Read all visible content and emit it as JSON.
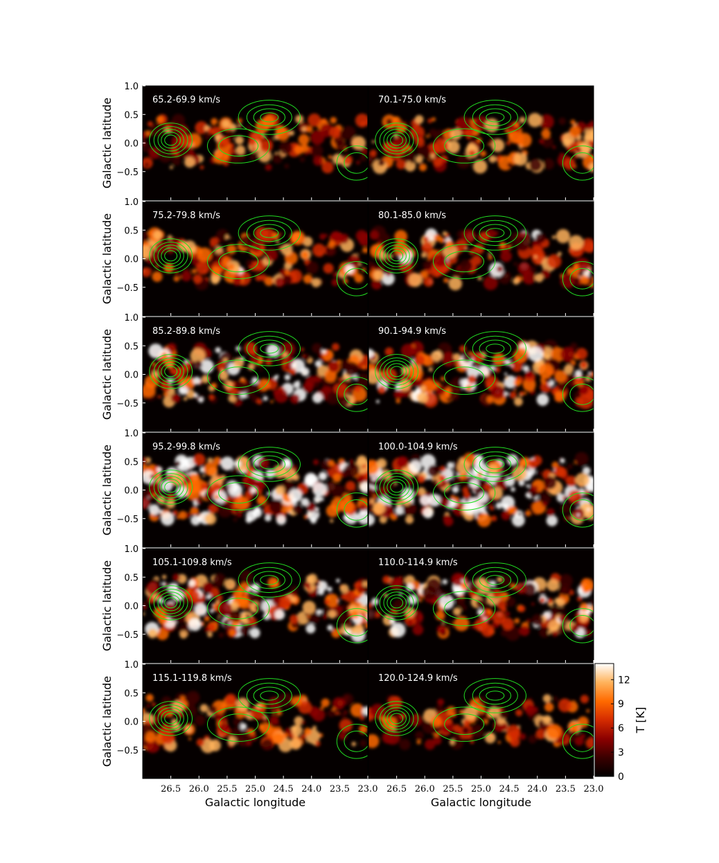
{
  "figure": {
    "ylabel": "Galactic latitude",
    "xlabel": "Galactic longitude",
    "x_ticks": [
      "26.5",
      "26.0",
      "25.5",
      "25.0",
      "24.5",
      "24.0",
      "23.5",
      "23.0"
    ],
    "y_ticks": [
      "1.0",
      "0.5",
      "0.0",
      "−0.5"
    ],
    "contour_color": "#22dd22",
    "colormap": [
      "#000000",
      "#3a0000",
      "#8b0000",
      "#d42b00",
      "#ff6a00",
      "#ffb35c",
      "#ffffff"
    ]
  },
  "colorbar": {
    "label": "T [K]",
    "ticks": [
      "0",
      "3",
      "6",
      "9",
      "12"
    ],
    "range": [
      0,
      14
    ]
  },
  "chart_data": {
    "type": "heatmap",
    "xlabel": "Galactic longitude",
    "ylabel": "Galactic latitude",
    "xlim": [
      27.0,
      23.0
    ],
    "ylim": [
      -1.0,
      1.0
    ],
    "colorbar_label": "T [K]",
    "colorbar_range": [
      0,
      14
    ],
    "panels": [
      {
        "label": "65.2-69.9 km/s",
        "row": 0,
        "col": 0
      },
      {
        "label": "70.1-75.0 km/s",
        "row": 0,
        "col": 1
      },
      {
        "label": "75.2-79.8 km/s",
        "row": 1,
        "col": 0
      },
      {
        "label": "80.1-85.0 km/s",
        "row": 1,
        "col": 1
      },
      {
        "label": "85.2-89.8 km/s",
        "row": 2,
        "col": 0
      },
      {
        "label": "90.1-94.9 km/s",
        "row": 2,
        "col": 1
      },
      {
        "label": "95.2-99.8 km/s",
        "row": 3,
        "col": 0
      },
      {
        "label": "100.0-104.9 km/s",
        "row": 3,
        "col": 1
      },
      {
        "label": "105.1-109.8 km/s",
        "row": 4,
        "col": 0
      },
      {
        "label": "110.0-114.9 km/s",
        "row": 4,
        "col": 1
      },
      {
        "label": "115.1-119.8 km/s",
        "row": 5,
        "col": 0
      },
      {
        "label": "120.0-124.9 km/s",
        "row": 5,
        "col": 1
      }
    ]
  }
}
